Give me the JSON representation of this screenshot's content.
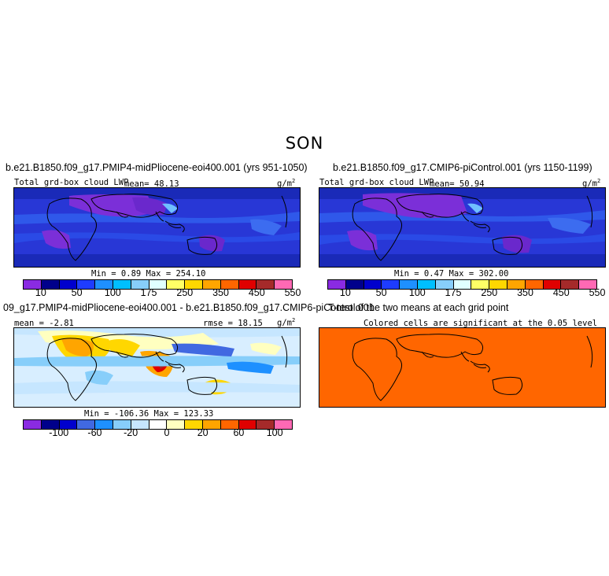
{
  "season": "SON",
  "left": {
    "case_title": "b.e21.B1850.f09_g17.PMIP4-midPliocene-eoi400.001 (yrs 951-1050)",
    "var_label": "Total grd-box cloud LWP",
    "mean_text": "mean=  48.13",
    "unit": "g/m",
    "unit_exp": "2",
    "minmax": "Min =    0.89  Max = 254.10"
  },
  "right": {
    "case_title": "b.e21.B1850.f09_g17.CMIP6-piControl.001 (yrs 1150-1199)",
    "var_label": "Total grd-box cloud LWP",
    "mean_text": "mean=  50.94",
    "unit": "g/m",
    "unit_exp": "2",
    "minmax": "Min =    0.47  Max = 302.00"
  },
  "diff": {
    "title": "09_g17.PMIP4-midPliocene-eoi400.001 - b.e21.B1850.f09_g17.CMIP6-piControl.001",
    "mean_text": "mean =  -2.81",
    "rmse_text": "rmse =  18.15",
    "unit": "g/m",
    "unit_exp": "2",
    "minmax": "Min = -106.36  Max = 123.33"
  },
  "ttest": {
    "title": "T-test of the two means at each grid point",
    "subtitle": "Colored cells are significant at the 0.05 level"
  },
  "abs_colorbar": {
    "colors": [
      "#8a2be2",
      "#00008b",
      "#0000cd",
      "#1e3cff",
      "#1e90ff",
      "#00bfff",
      "#87cefa",
      "#e0ffff",
      "#ffff66",
      "#ffd700",
      "#ffa500",
      "#ff6600",
      "#e00000",
      "#a52a2a",
      "#ff69b4"
    ],
    "labels": [
      "10",
      "50",
      "100",
      "175",
      "250",
      "350",
      "450",
      "550"
    ]
  },
  "diff_colorbar": {
    "colors": [
      "#8a2be2",
      "#00008b",
      "#0000cd",
      "#4169e1",
      "#1e90ff",
      "#87cefa",
      "#c6e6ff",
      "#ffffff",
      "#ffffc0",
      "#ffd700",
      "#ffa500",
      "#ff6600",
      "#e00000",
      "#a52a2a",
      "#ff69b4"
    ],
    "labels": [
      "-100",
      "-60",
      "-20",
      "0",
      "20",
      "60",
      "100"
    ]
  },
  "colors": {
    "ttest_fill": "#ff6600"
  }
}
